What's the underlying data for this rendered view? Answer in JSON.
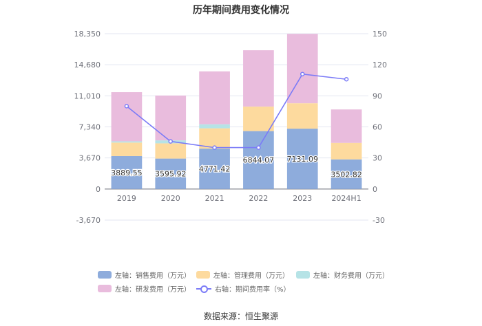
{
  "chart_data": {
    "type": "bar",
    "stacked": true,
    "title": "历年期间费用变化情况",
    "categories": [
      "2019",
      "2020",
      "2021",
      "2022",
      "2023",
      "2024H1"
    ],
    "left_axis": {
      "ticks": [
        "18,350",
        "14,680",
        "11,010",
        "7,340",
        "3,670",
        "0",
        "-3,670"
      ],
      "range": [
        -3670,
        18350
      ]
    },
    "right_axis": {
      "ticks": [
        "150",
        "120",
        "90",
        "60",
        "30",
        "0",
        "-30"
      ],
      "range": [
        -30,
        150
      ]
    },
    "series": [
      {
        "name": "左轴：销售费用（万元）",
        "color": "#8EACDC",
        "values": [
          3889.55,
          3595.92,
          4771.42,
          6844.07,
          7131.09,
          3502.82
        ],
        "labels": [
          "3889.55",
          "3595.92",
          "4771.42",
          "6844.07",
          "7131.09",
          "3502.82"
        ]
      },
      {
        "name": "左轴：管理费用（万元）",
        "color": "#FDDA9E",
        "values": [
          1600,
          1800,
          2400,
          2900,
          3000,
          1950
        ]
      },
      {
        "name": "左轴：财务费用（万元）",
        "color": "#B6E3E6",
        "values": [
          150,
          350,
          480,
          0,
          0,
          0
        ]
      },
      {
        "name": "左轴：研发费用（万元）",
        "color": "#E9BCDD",
        "values": [
          5800,
          5300,
          6250,
          6650,
          8200,
          3950
        ]
      }
    ],
    "line_series": {
      "name": "右轴：期间费用率（%）",
      "color": "#7B7BF7",
      "axis": "right",
      "values": [
        80,
        46,
        40,
        40,
        111,
        106
      ]
    },
    "source": "数据来源：恒生聚源"
  }
}
